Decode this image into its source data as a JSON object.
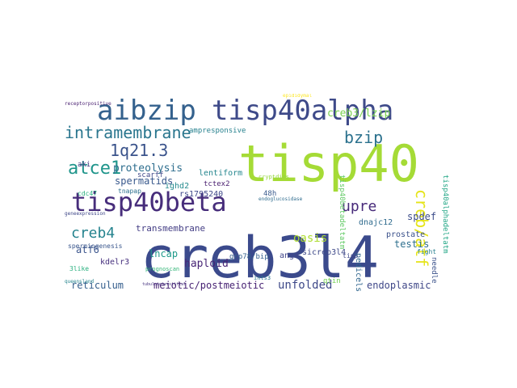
{
  "word_cloud": {
    "words": [
      {
        "text": "creb3l4",
        "color": "#3b4a8c"
      },
      {
        "text": "tisp40",
        "color": "#a5db36"
      },
      {
        "text": "aibzip",
        "color": "#34618d"
      },
      {
        "text": "tisp40alpha",
        "color": "#3e4a89"
      },
      {
        "text": "tisp40beta",
        "color": "#472d7b"
      },
      {
        "text": "intramembrane",
        "color": "#2a768e"
      },
      {
        "text": "1q21.3",
        "color": "#3a538b"
      },
      {
        "text": "atce1",
        "color": "#1f958b"
      },
      {
        "text": "bzip",
        "color": "#2c728e"
      },
      {
        "text": "creb/atf",
        "color": "#e5e419"
      },
      {
        "text": "upre",
        "color": "#472a7a"
      },
      {
        "text": "creb4",
        "color": "#25838e"
      },
      {
        "text": "creb3/lzip",
        "color": "#7ad151"
      },
      {
        "text": "proteolysis",
        "color": "#2e6e8e"
      },
      {
        "text": "spermatids",
        "color": "#38588c"
      },
      {
        "text": "reticulum",
        "color": "#355f8d"
      },
      {
        "text": "meiotic/postmeiotic",
        "color": "#482374"
      },
      {
        "text": "unfolded",
        "color": "#3e4989"
      },
      {
        "text": "endoplasmic",
        "color": "#3f4788"
      },
      {
        "text": "transmembrane",
        "color": "#433d84"
      },
      {
        "text": "lncap",
        "color": "#1f9a8a"
      },
      {
        "text": "atf6",
        "color": "#3a548c"
      },
      {
        "text": "testis",
        "color": "#2e6f8e"
      },
      {
        "text": "spdef",
        "color": "#3d4d8a"
      },
      {
        "text": "oasis",
        "color": "#addc30"
      },
      {
        "text": "haploid",
        "color": "#482576"
      },
      {
        "text": "kdelr3",
        "color": "#46307e"
      },
      {
        "text": "lentiform",
        "color": "#24868e"
      },
      {
        "text": "tctex2",
        "color": "#481c6e"
      },
      {
        "text": "rs1795240",
        "color": "#3f4889"
      },
      {
        "text": "ighd2",
        "color": "#238a8d"
      },
      {
        "text": "ampresponsive",
        "color": "#26818e"
      },
      {
        "text": "sicreb3l4",
        "color": "#3e4989"
      },
      {
        "text": "ang4",
        "color": "#40458a"
      },
      {
        "text": "dnajc12",
        "color": "#2f6b8e"
      },
      {
        "text": "grp78/bip",
        "color": "#34608d"
      },
      {
        "text": "tisp40betadeltatm",
        "color": "#5ec962"
      },
      {
        "text": "tisp40alphadeltatm",
        "color": "#21a685"
      },
      {
        "text": "prostate",
        "color": "#3b518b"
      },
      {
        "text": "needle",
        "color": "#3b528b"
      },
      {
        "text": "pedicels",
        "color": "#31668e"
      },
      {
        "text": "spermiogenesis",
        "color": "#39568c"
      },
      {
        "text": "3like",
        "color": "#2ab07f"
      },
      {
        "text": "cdc47",
        "color": "#29af7f"
      },
      {
        "text": "aki",
        "color": "#453781"
      },
      {
        "text": "48h",
        "color": "#38598c"
      },
      {
        "text": "tisp",
        "color": "#3f4889"
      },
      {
        "text": "fight",
        "color": "#277f8e"
      },
      {
        "text": "qtin",
        "color": "#75d054"
      },
      {
        "text": "scarff",
        "color": "#3f4788"
      },
      {
        "text": "tnapap",
        "color": "#2d708e"
      },
      {
        "text": "ints3",
        "color": "#2a778e"
      },
      {
        "text": "cryptdins",
        "color": "#95d840"
      },
      {
        "text": "geneexpression",
        "color": "#3f4788"
      },
      {
        "text": "prognoscan",
        "color": "#35b779"
      },
      {
        "text": "queensland",
        "color": "#25848e"
      },
      {
        "text": "receptorpositive",
        "color": "#481f70"
      },
      {
        "text": "endoglucosidase",
        "color": "#2f6c8e"
      },
      {
        "text": "tubulointerstitial",
        "color": "#46337f"
      },
      {
        "text": "epididymal",
        "color": "#fde725"
      }
    ]
  }
}
